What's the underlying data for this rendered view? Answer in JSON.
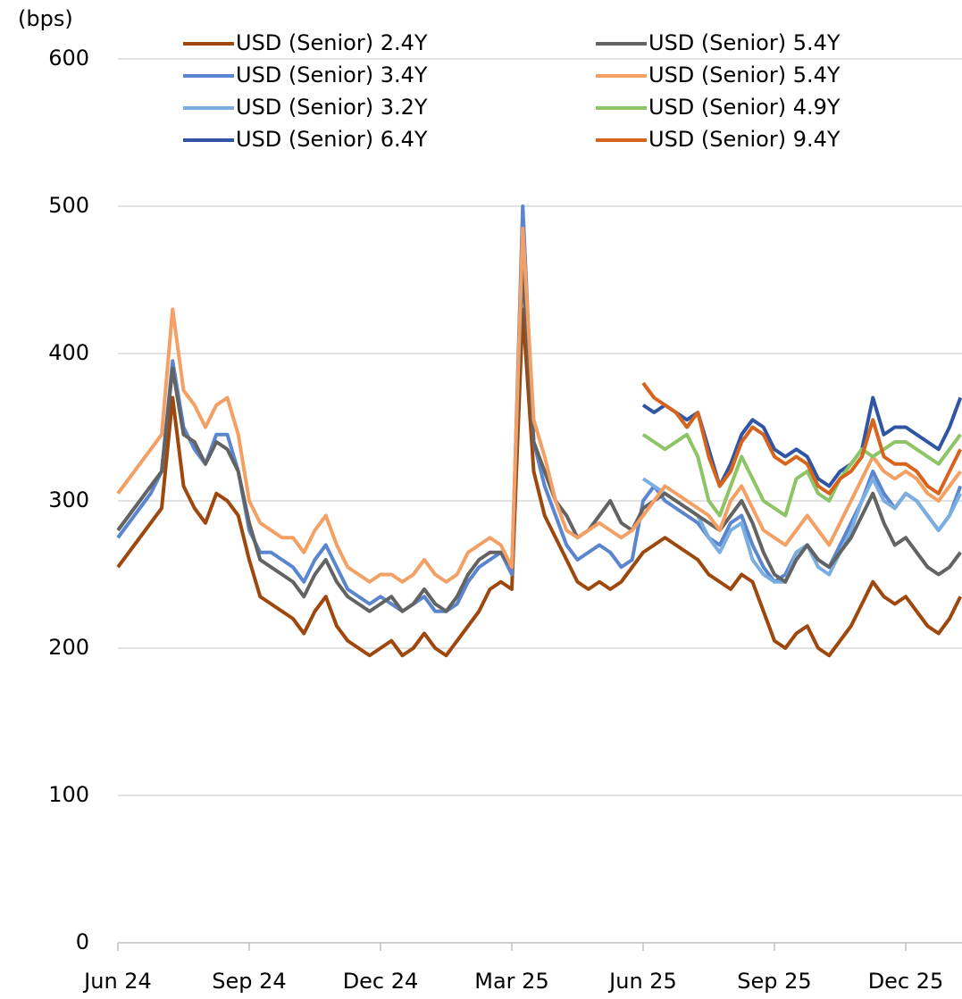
{
  "chart_data": {
    "type": "line",
    "y_label": "(bps)",
    "categories": [
      "Jun 24",
      null,
      null,
      null,
      null,
      null,
      null,
      null,
      null,
      null,
      null,
      null,
      "Sep 24",
      null,
      null,
      null,
      null,
      null,
      null,
      null,
      null,
      null,
      null,
      null,
      "Dec 24",
      null,
      null,
      null,
      null,
      null,
      null,
      null,
      null,
      null,
      null,
      null,
      "Mar 25",
      null,
      null,
      null,
      null,
      null,
      null,
      null,
      null,
      null,
      null,
      null,
      "Jun 25",
      null,
      null,
      null,
      null,
      null,
      null,
      null,
      null,
      null,
      null,
      null,
      "Sep 25",
      null,
      null,
      null,
      null,
      null,
      null,
      null,
      null,
      null,
      null,
      null,
      "Dec 25",
      null,
      null,
      null,
      null,
      null
    ],
    "ylim": [
      0,
      600
    ],
    "yticks": [
      0,
      100,
      200,
      300,
      400,
      500,
      600
    ],
    "grid": true,
    "series": [
      {
        "name": "USD (Senior) 2.4Y",
        "color": "#9e480e",
        "values": [
          255,
          265,
          275,
          285,
          295,
          370,
          310,
          295,
          285,
          305,
          300,
          290,
          260,
          235,
          230,
          225,
          220,
          210,
          225,
          235,
          215,
          205,
          200,
          195,
          200,
          205,
          195,
          200,
          210,
          200,
          195,
          205,
          215,
          225,
          240,
          245,
          240,
          430,
          320,
          290,
          275,
          260,
          245,
          240,
          245,
          240,
          245,
          255,
          265,
          270,
          275,
          270,
          265,
          260,
          250,
          245,
          240,
          250,
          245,
          225,
          205,
          200,
          210,
          215,
          200,
          195,
          205,
          215,
          230,
          245,
          235,
          230,
          235,
          225,
          215,
          210,
          220,
          235
        ]
      },
      {
        "name": "USD (Senior) 3.4Y",
        "color": "#5b86cf",
        "values": [
          275,
          285,
          295,
          305,
          320,
          395,
          350,
          335,
          325,
          345,
          345,
          320,
          280,
          265,
          265,
          260,
          255,
          245,
          260,
          270,
          255,
          240,
          235,
          230,
          235,
          230,
          225,
          230,
          235,
          225,
          225,
          230,
          245,
          255,
          260,
          265,
          250,
          500,
          340,
          310,
          290,
          270,
          260,
          265,
          270,
          265,
          255,
          260,
          300,
          310,
          300,
          295,
          290,
          285,
          275,
          270,
          285,
          290,
          270,
          255,
          245,
          250,
          265,
          270,
          260,
          255,
          270,
          285,
          300,
          320,
          305,
          295,
          305,
          300,
          290,
          280,
          290,
          310
        ]
      },
      {
        "name": "USD (Senior) 3.2Y",
        "color": "#7aaee0",
        "values": [
          null,
          null,
          null,
          null,
          null,
          null,
          null,
          null,
          null,
          null,
          null,
          null,
          null,
          null,
          null,
          null,
          null,
          null,
          null,
          null,
          null,
          null,
          null,
          null,
          null,
          null,
          null,
          null,
          null,
          null,
          null,
          null,
          null,
          null,
          null,
          null,
          null,
          null,
          null,
          null,
          null,
          null,
          null,
          null,
          null,
          null,
          null,
          null,
          315,
          310,
          305,
          300,
          295,
          290,
          275,
          265,
          280,
          285,
          260,
          250,
          245,
          245,
          265,
          270,
          255,
          250,
          265,
          280,
          300,
          315,
          300,
          295,
          305,
          300,
          290,
          280,
          290,
          305
        ]
      },
      {
        "name": "USD (Senior) 6.4Y",
        "color": "#2f55a4",
        "values": [
          null,
          null,
          null,
          null,
          null,
          null,
          null,
          null,
          null,
          null,
          null,
          null,
          null,
          null,
          null,
          null,
          null,
          null,
          null,
          null,
          null,
          null,
          null,
          null,
          null,
          null,
          null,
          null,
          null,
          null,
          null,
          null,
          null,
          null,
          null,
          null,
          null,
          null,
          null,
          null,
          null,
          null,
          null,
          null,
          null,
          null,
          null,
          null,
          365,
          360,
          365,
          360,
          355,
          360,
          335,
          310,
          325,
          345,
          355,
          350,
          335,
          330,
          335,
          330,
          315,
          310,
          320,
          325,
          335,
          370,
          345,
          350,
          350,
          345,
          340,
          335,
          350,
          370
        ]
      },
      {
        "name": "USD (Senior) 5.4Y",
        "color": "#636363",
        "values": [
          280,
          290,
          300,
          310,
          320,
          390,
          345,
          340,
          325,
          340,
          335,
          320,
          285,
          260,
          255,
          250,
          245,
          235,
          250,
          260,
          245,
          235,
          230,
          225,
          230,
          235,
          225,
          230,
          240,
          230,
          225,
          235,
          250,
          260,
          265,
          265,
          255,
          460,
          340,
          320,
          300,
          290,
          275,
          280,
          290,
          300,
          285,
          280,
          295,
          300,
          305,
          300,
          295,
          290,
          285,
          280,
          290,
          300,
          285,
          265,
          250,
          245,
          260,
          270,
          260,
          255,
          265,
          275,
          290,
          305,
          285,
          270,
          275,
          265,
          255,
          250,
          255,
          265
        ]
      },
      {
        "name": "USD (Senior) 5.4Y",
        "color": "#f4a064",
        "values": [
          305,
          315,
          325,
          335,
          345,
          430,
          375,
          365,
          350,
          365,
          370,
          345,
          300,
          285,
          280,
          275,
          275,
          265,
          280,
          290,
          270,
          255,
          250,
          245,
          250,
          250,
          245,
          250,
          260,
          250,
          245,
          250,
          265,
          270,
          275,
          270,
          255,
          485,
          355,
          330,
          300,
          280,
          275,
          280,
          285,
          280,
          275,
          280,
          290,
          300,
          310,
          305,
          300,
          295,
          290,
          280,
          300,
          310,
          295,
          280,
          275,
          270,
          280,
          290,
          280,
          270,
          285,
          300,
          315,
          330,
          320,
          315,
          320,
          315,
          305,
          300,
          310,
          320
        ]
      },
      {
        "name": "USD (Senior) 4.9Y",
        "color": "#8cc466",
        "values": [
          null,
          null,
          null,
          null,
          null,
          null,
          null,
          null,
          null,
          null,
          null,
          null,
          null,
          null,
          null,
          null,
          null,
          null,
          null,
          null,
          null,
          null,
          null,
          null,
          null,
          null,
          null,
          null,
          null,
          null,
          null,
          null,
          null,
          null,
          null,
          null,
          null,
          null,
          null,
          null,
          null,
          null,
          null,
          null,
          null,
          null,
          null,
          null,
          345,
          340,
          335,
          340,
          345,
          330,
          300,
          290,
          310,
          330,
          315,
          300,
          295,
          290,
          315,
          320,
          305,
          300,
          315,
          325,
          335,
          330,
          335,
          340,
          340,
          335,
          330,
          325,
          335,
          345
        ]
      },
      {
        "name": "USD (Senior) 9.4Y",
        "color": "#d8641c",
        "values": [
          null,
          null,
          null,
          null,
          null,
          null,
          null,
          null,
          null,
          null,
          null,
          null,
          null,
          null,
          null,
          null,
          null,
          null,
          null,
          null,
          null,
          null,
          null,
          null,
          null,
          null,
          null,
          null,
          null,
          null,
          null,
          null,
          null,
          null,
          null,
          null,
          null,
          null,
          null,
          null,
          null,
          null,
          null,
          null,
          null,
          null,
          null,
          null,
          380,
          370,
          365,
          360,
          350,
          360,
          330,
          310,
          320,
          340,
          350,
          345,
          330,
          325,
          330,
          325,
          310,
          305,
          315,
          320,
          330,
          355,
          330,
          325,
          325,
          320,
          310,
          305,
          320,
          335
        ]
      }
    ]
  }
}
